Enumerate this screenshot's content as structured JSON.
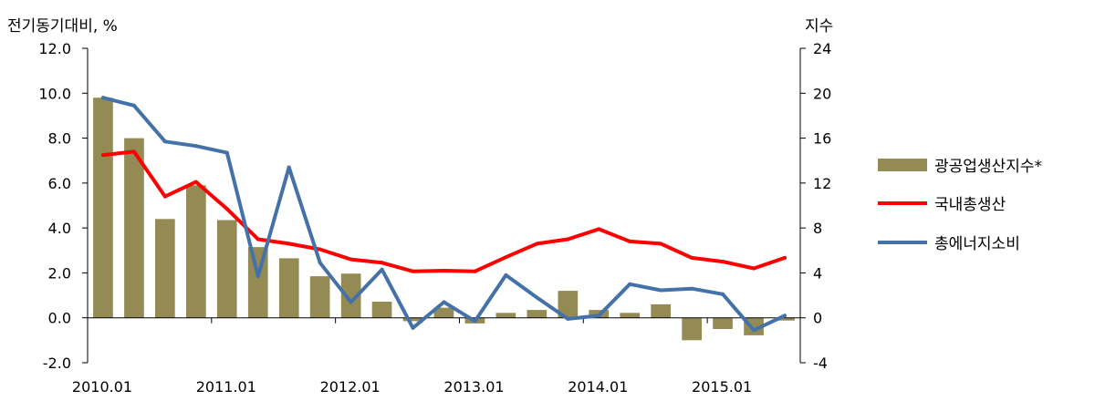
{
  "chart_data": {
    "type": "bar",
    "left_axis_title": "전기동기대비, %",
    "right_axis_title": "지수",
    "x": [
      "2010.01",
      "2010.04",
      "2010.07",
      "2010.10",
      "2011.01",
      "2011.04",
      "2011.07",
      "2011.10",
      "2012.01",
      "2012.04",
      "2012.07",
      "2012.10",
      "2013.01",
      "2013.04",
      "2013.07",
      "2013.10",
      "2014.01",
      "2014.04",
      "2014.07",
      "2014.10",
      "2015.01",
      "2015.04",
      "2015.07"
    ],
    "x_tick_labels": [
      "2010.01",
      "2011.01",
      "2012.01",
      "2013.01",
      "2014.01",
      "2015.01"
    ],
    "left_axis": {
      "min": -2.0,
      "max": 12.0,
      "ticks": [
        "12.0",
        "10.0",
        "8.0",
        "6.0",
        "4.0",
        "2.0",
        "0.0",
        "-2.0"
      ]
    },
    "right_axis": {
      "min": -4,
      "max": 24,
      "ticks": [
        "24",
        "20",
        "16",
        "12",
        "8",
        "4",
        "0",
        "-4"
      ]
    },
    "series": [
      {
        "name": "광공업생산지수*",
        "kind": "bar",
        "axis": "left",
        "color": "#948A54",
        "values": [
          9.8,
          8.0,
          4.4,
          5.9,
          4.35,
          3.15,
          2.65,
          1.85,
          1.97,
          0.72,
          -0.15,
          0.45,
          -0.25,
          0.22,
          0.35,
          1.2,
          0.35,
          0.22,
          0.6,
          -1.0,
          -0.5,
          -0.78,
          -0.12
        ]
      },
      {
        "name": "국내총생산",
        "kind": "line",
        "axis": "left",
        "color": "#FF0000",
        "values": [
          7.25,
          7.4,
          5.4,
          6.05,
          4.85,
          3.5,
          3.3,
          3.05,
          2.6,
          2.45,
          2.07,
          2.1,
          2.07,
          2.7,
          3.3,
          3.5,
          3.95,
          3.4,
          3.3,
          2.67,
          2.5,
          2.2,
          2.67
        ]
      },
      {
        "name": "총에너지소비",
        "kind": "line",
        "axis": "right",
        "color": "#4472A8",
        "values": [
          19.6,
          18.9,
          15.7,
          15.3,
          14.7,
          3.7,
          13.4,
          4.9,
          1.4,
          4.3,
          -0.9,
          1.4,
          -0.3,
          3.8,
          1.8,
          -0.1,
          0.2,
          3.0,
          2.45,
          2.6,
          2.1,
          -1.1,
          0.2
        ]
      }
    ]
  }
}
